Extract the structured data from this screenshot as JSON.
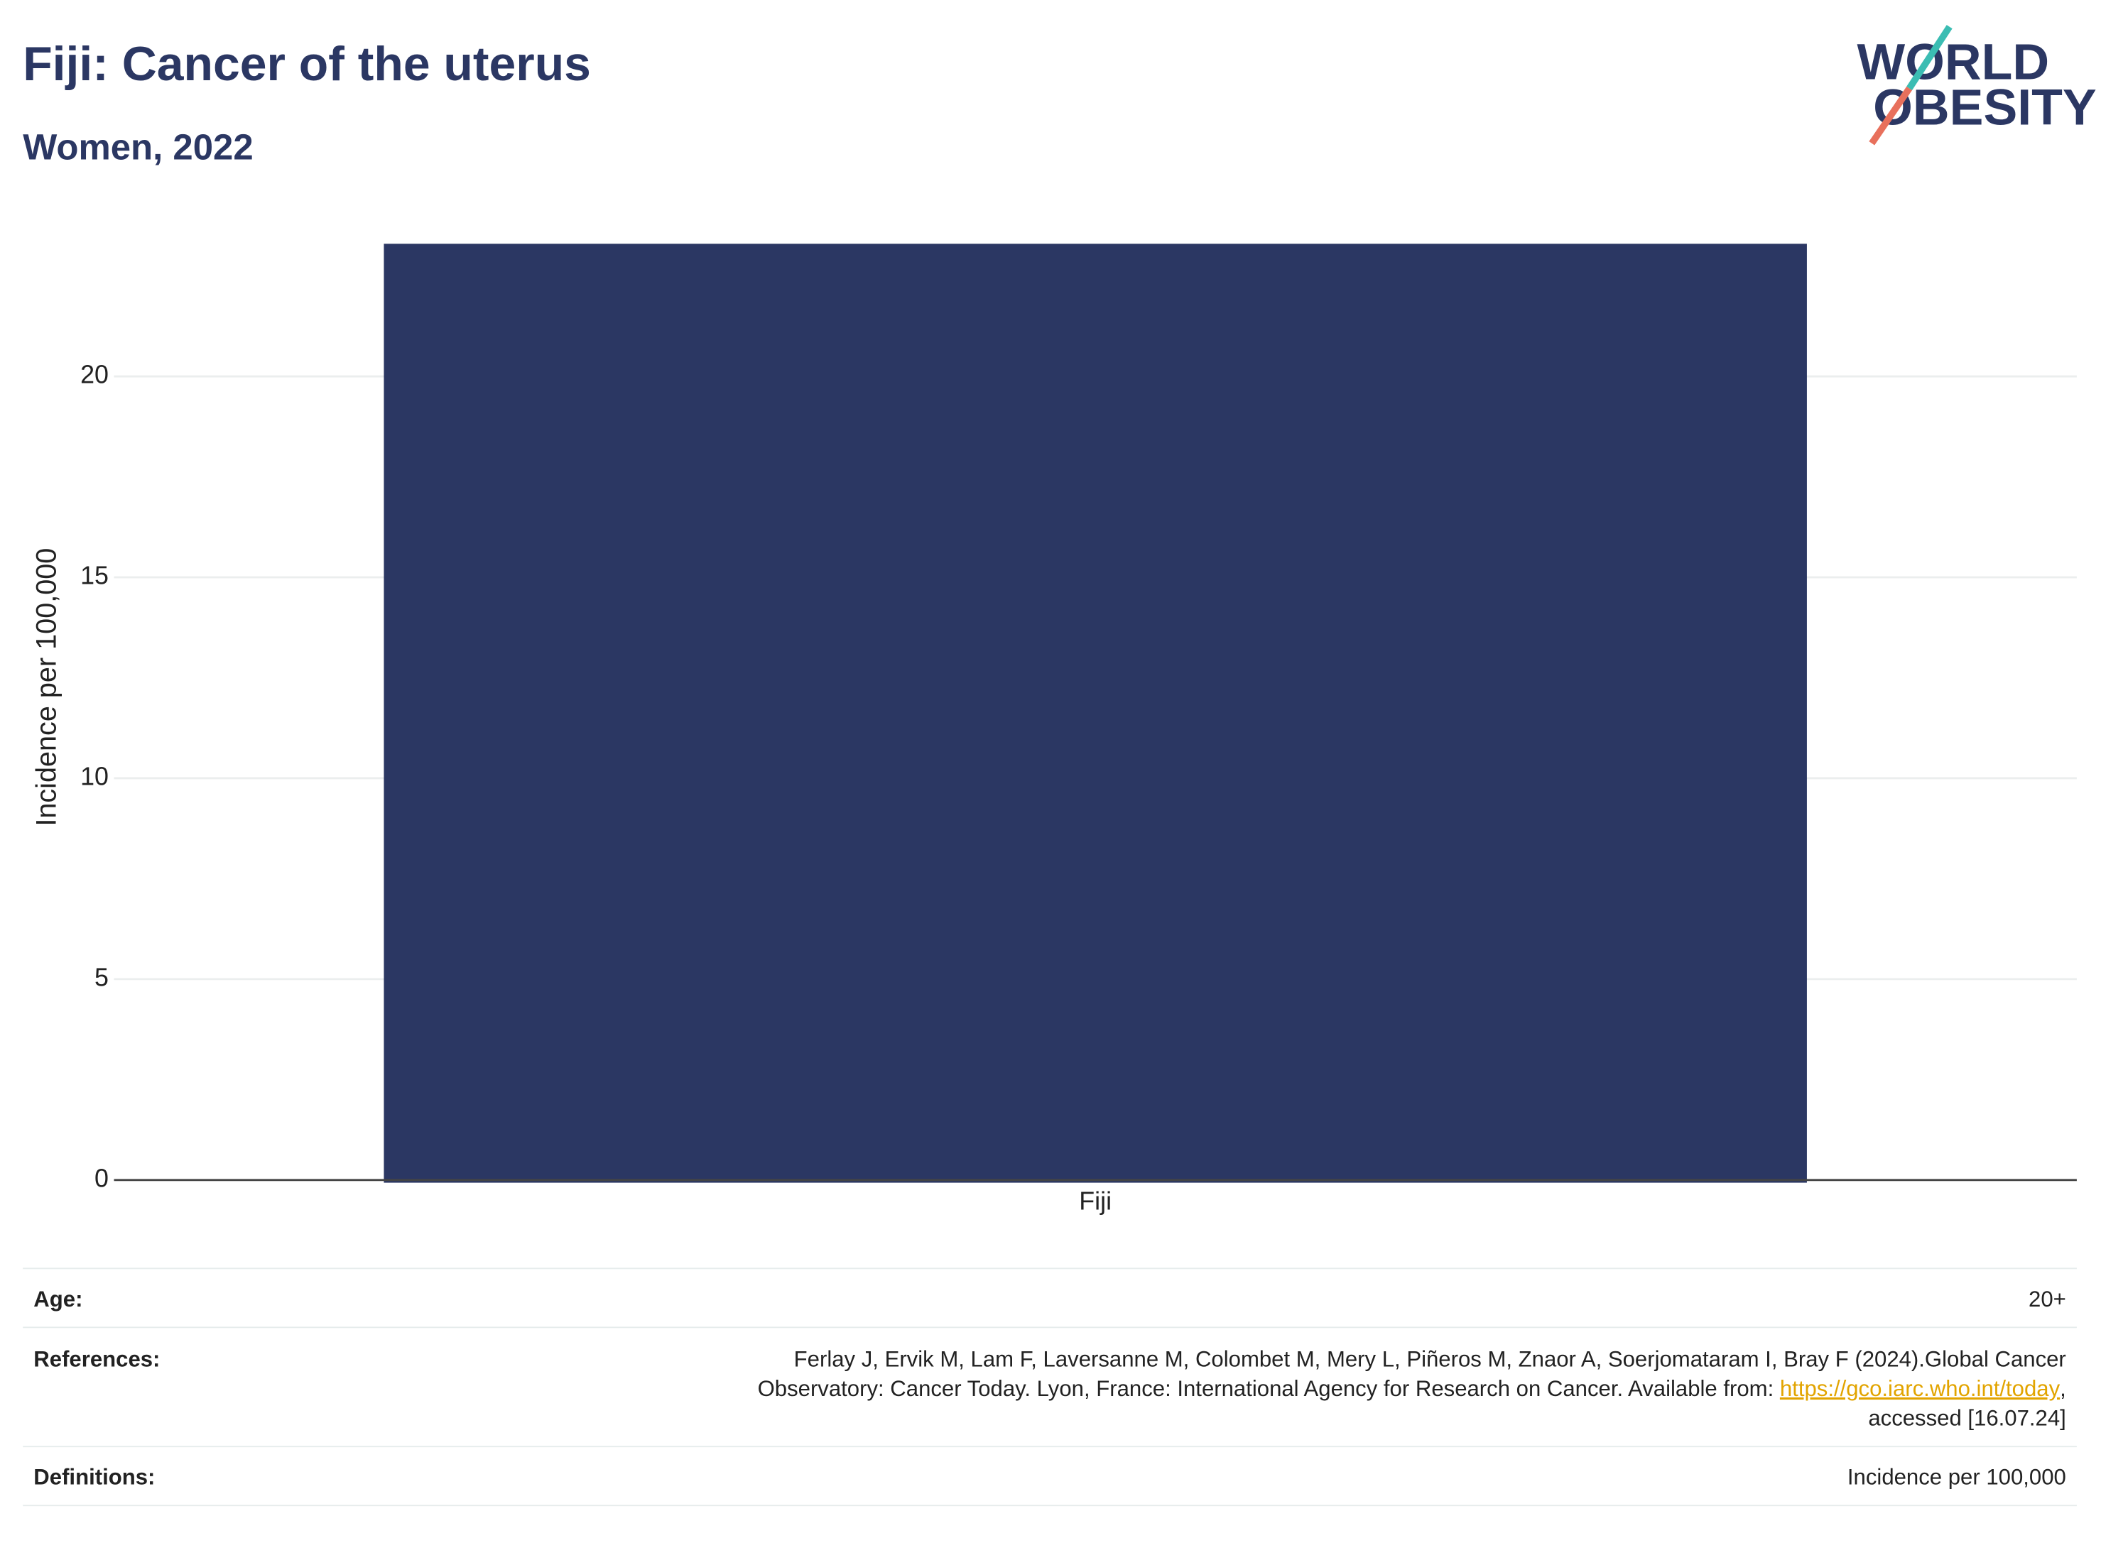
{
  "chart_data": {
    "type": "bar",
    "title": "Fiji: Cancer of the uterus",
    "subtitle": "Women, 2022",
    "y_label": "Incidence per 100,000",
    "categories": [
      "Fiji"
    ],
    "values": [
      23.3
    ],
    "color": "#2b3763",
    "ylim": [
      0,
      23.7
    ],
    "yticks": [
      0,
      5,
      10,
      15,
      20
    ],
    "grid": true
  },
  "logo": {
    "line1": "WORLD",
    "line2": "OBESITY"
  },
  "footer": {
    "age": {
      "label": "Age:",
      "value": "20+"
    },
    "references": {
      "label": "References:",
      "line1": "Ferlay J, Ervik M, Lam F, Laversanne M, Colombet M, Mery L, Piñeros M, Znaor A, Soerjomataram I, Bray F (2024).Global Cancer",
      "line2": "Observatory: Cancer Today. Lyon, France: International Agency for Research on Cancer. Available from: ",
      "link": "https://gco.iarc.who.int/today",
      "after_link": ",",
      "line3": "accessed [16.07.24]"
    },
    "definitions": {
      "label": "Definitions:",
      "value": "Incidence per 100,000"
    }
  }
}
